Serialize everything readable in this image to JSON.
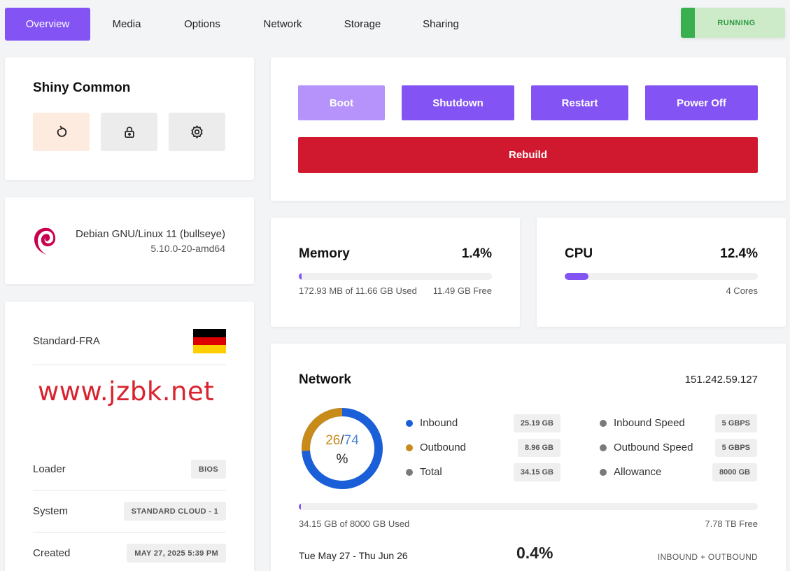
{
  "tabs": [
    {
      "label": "Overview",
      "active": true
    },
    {
      "label": "Media"
    },
    {
      "label": "Options"
    },
    {
      "label": "Network"
    },
    {
      "label": "Storage"
    },
    {
      "label": "Sharing"
    }
  ],
  "status": {
    "label": "RUNNING",
    "color": "#3aaf4d"
  },
  "server": {
    "name": "Shiny Common",
    "quick_actions": [
      {
        "icon": "refresh-icon"
      },
      {
        "icon": "lock-icon"
      },
      {
        "icon": "gear-icon"
      }
    ]
  },
  "os": {
    "logo": "debian-logo",
    "name": "Debian GNU/Linux 11 (bullseye)",
    "kernel": "5.10.0-20-amd64"
  },
  "info": {
    "location": "Standard-FRA",
    "flag": "germany-flag",
    "watermark": "www.jzbk.net",
    "rows": [
      {
        "label": "Loader",
        "value": "BIOS"
      },
      {
        "label": "System",
        "value": "STANDARD CLOUD - 1"
      },
      {
        "label": "Created",
        "value": "MAY 27, 2025 5:39 PM"
      }
    ]
  },
  "power": {
    "boot": "Boot",
    "shutdown": "Shutdown",
    "restart": "Restart",
    "power_off": "Power Off",
    "rebuild": "Rebuild"
  },
  "memory": {
    "title": "Memory",
    "percent_label": "1.4%",
    "percent": 1.4,
    "used": "172.93 MB of 11.66 GB Used",
    "free": "11.49 GB Free"
  },
  "cpu": {
    "title": "CPU",
    "percent_label": "12.4%",
    "percent": 12.4,
    "cores": "4 Cores"
  },
  "network": {
    "title": "Network",
    "ip": "151.242.59.127",
    "donut": {
      "outbound": 26,
      "inbound": 74,
      "unit": "%",
      "sep": "/"
    },
    "legend_left": [
      {
        "label": "Inbound",
        "value": "25.19 GB",
        "color": "#1a5fd8"
      },
      {
        "label": "Outbound",
        "value": "8.96 GB",
        "color": "#c88a19"
      },
      {
        "label": "Total",
        "value": "34.15 GB",
        "color": "#7a7a7a"
      }
    ],
    "legend_right": [
      {
        "label": "Inbound Speed",
        "value": "5 GBPS",
        "color": "#7a7a7a"
      },
      {
        "label": "Outbound Speed",
        "value": "5 GBPS",
        "color": "#7a7a7a"
      },
      {
        "label": "Allowance",
        "value": "8000 GB",
        "color": "#7a7a7a"
      }
    ],
    "usage_percent": 0.4,
    "used": "34.15 GB of 8000 GB Used",
    "free": "7.78 TB Free",
    "period": "Tue May 27 - Thu Jun 26",
    "period_percent": "0.4%",
    "type": "INBOUND + OUTBOUND"
  }
}
